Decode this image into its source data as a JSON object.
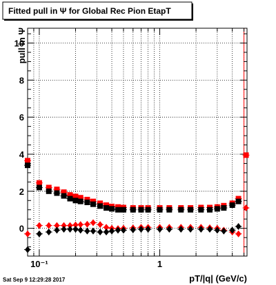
{
  "chart_data": {
    "type": "scatter",
    "title": "Fitted pull in Ψ  for Global Rec Pion EtapT",
    "xlabel": "pT/|q| (GeV/c)",
    "ylabel": "pull in Ψ",
    "x_scale": "log",
    "xlim": [
      0.08,
      5.3
    ],
    "ylim": [
      -1.5,
      10.8
    ],
    "grid": true,
    "x_tick_labels": [
      {
        "value": 0.1,
        "label": "10⁻¹"
      },
      {
        "value": 1,
        "label": "1"
      }
    ],
    "y_ticks": [
      0,
      2,
      4,
      6,
      8,
      10
    ],
    "vertical_line": {
      "x": 5.0,
      "color": "#ff0000"
    },
    "timestamp": "Sat Sep  9 12:29:28 2017",
    "series": [
      {
        "color": "#ff0000",
        "marker": "square",
        "x": [
          0.08,
          0.1,
          0.12,
          0.14,
          0.16,
          0.18,
          0.2,
          0.22,
          0.25,
          0.28,
          0.32,
          0.36,
          0.4,
          0.45,
          0.5,
          0.6,
          0.7,
          0.8,
          1.0,
          1.2,
          1.5,
          1.8,
          2.2,
          2.6,
          3.0,
          3.4,
          4.0,
          4.5,
          5.2
        ],
        "y": [
          3.65,
          2.45,
          2.2,
          2.1,
          1.95,
          1.8,
          1.72,
          1.65,
          1.55,
          1.45,
          1.35,
          1.25,
          1.18,
          1.15,
          1.12,
          1.1,
          1.1,
          1.1,
          1.1,
          1.1,
          1.1,
          1.1,
          1.12,
          1.12,
          1.15,
          1.22,
          1.35,
          1.6,
          3.95
        ]
      },
      {
        "color": "#000000",
        "marker": "square",
        "x": [
          0.08,
          0.1,
          0.12,
          0.14,
          0.16,
          0.18,
          0.2,
          0.22,
          0.25,
          0.28,
          0.32,
          0.36,
          0.4,
          0.45,
          0.5,
          0.6,
          0.7,
          0.8,
          1.0,
          1.2,
          1.5,
          1.8,
          2.2,
          2.6,
          3.0,
          3.4,
          4.0,
          4.5
        ],
        "y": [
          3.4,
          2.2,
          2.0,
          1.9,
          1.75,
          1.6,
          1.5,
          1.45,
          1.4,
          1.3,
          1.2,
          1.1,
          1.05,
          1.0,
          1.0,
          1.0,
          1.0,
          1.0,
          1.0,
          1.0,
          1.0,
          1.0,
          1.0,
          1.0,
          1.05,
          1.1,
          1.25,
          1.45
        ]
      },
      {
        "color": "#ff0000",
        "marker": "diamond",
        "x": [
          0.08,
          0.1,
          0.12,
          0.14,
          0.16,
          0.18,
          0.2,
          0.22,
          0.25,
          0.28,
          0.32,
          0.36,
          0.4,
          0.45,
          0.5,
          0.6,
          0.7,
          0.8,
          1.0,
          1.2,
          1.5,
          1.8,
          2.2,
          2.6,
          3.0,
          3.4,
          4.0,
          4.5,
          5.2
        ],
        "y": [
          -0.3,
          0.15,
          0.15,
          0.15,
          0.15,
          0.15,
          0.18,
          0.2,
          0.22,
          0.3,
          0.2,
          0.05,
          0.0,
          -0.02,
          0.0,
          0.02,
          0.05,
          0.05,
          0.05,
          0.05,
          0.05,
          0.05,
          0.05,
          0.03,
          0.0,
          -0.1,
          -0.2,
          -0.3,
          1.1
        ]
      },
      {
        "color": "#000000",
        "marker": "diamond",
        "x": [
          0.08,
          0.1,
          0.12,
          0.14,
          0.16,
          0.18,
          0.2,
          0.22,
          0.25,
          0.28,
          0.32,
          0.36,
          0.4,
          0.45,
          0.5,
          0.6,
          0.7,
          0.8,
          1.0,
          1.2,
          1.5,
          1.8,
          2.2,
          2.6,
          3.0,
          3.4,
          4.0,
          4.5
        ],
        "y": [
          -1.15,
          -0.3,
          -0.2,
          -0.1,
          -0.05,
          -0.05,
          -0.05,
          -0.1,
          -0.15,
          -0.15,
          -0.2,
          -0.2,
          -0.15,
          -0.1,
          -0.1,
          -0.08,
          -0.05,
          -0.05,
          -0.05,
          -0.05,
          -0.05,
          -0.05,
          -0.05,
          -0.05,
          -0.1,
          -0.15,
          -0.1,
          0.1
        ]
      }
    ]
  }
}
